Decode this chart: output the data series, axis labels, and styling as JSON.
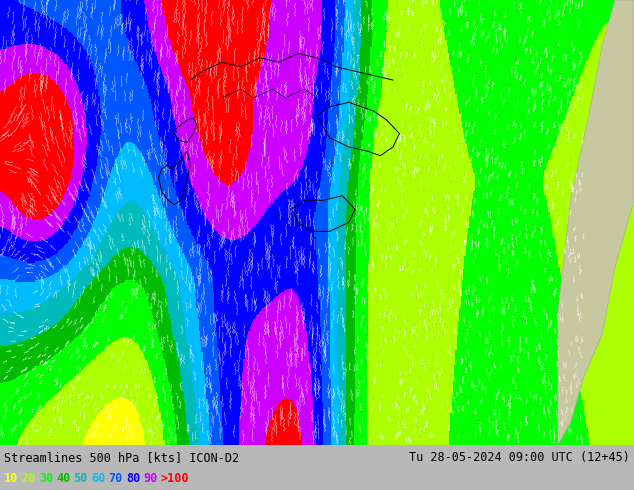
{
  "title_left": "Streamlines 500 hPa [kts] ICON-D2",
  "title_right": "Tu 28-05-2024 09:00 UTC (12+45)",
  "legend_labels": [
    "10",
    "20",
    "30",
    "40",
    "50",
    "60",
    "70",
    "80",
    "90",
    ">100"
  ],
  "legend_colors": [
    "#ffff00",
    "#aaff00",
    "#00ff00",
    "#00bb00",
    "#00bbbb",
    "#00bbff",
    "#0055ff",
    "#0000ff",
    "#cc00ff",
    "#ff0000"
  ],
  "colormap_colors": [
    "#ffff00",
    "#aaff00",
    "#00ff00",
    "#00bb00",
    "#00bbbb",
    "#00bbff",
    "#0055ff",
    "#0000ff",
    "#cc00ff",
    "#ff0000"
  ],
  "colormap_levels": [
    0,
    10,
    20,
    30,
    40,
    50,
    60,
    70,
    80,
    90,
    100
  ],
  "bar_bg": "#b8b8b8",
  "land_color": "#c8c8a0",
  "figsize": [
    6.34,
    4.9
  ],
  "dpi": 100
}
